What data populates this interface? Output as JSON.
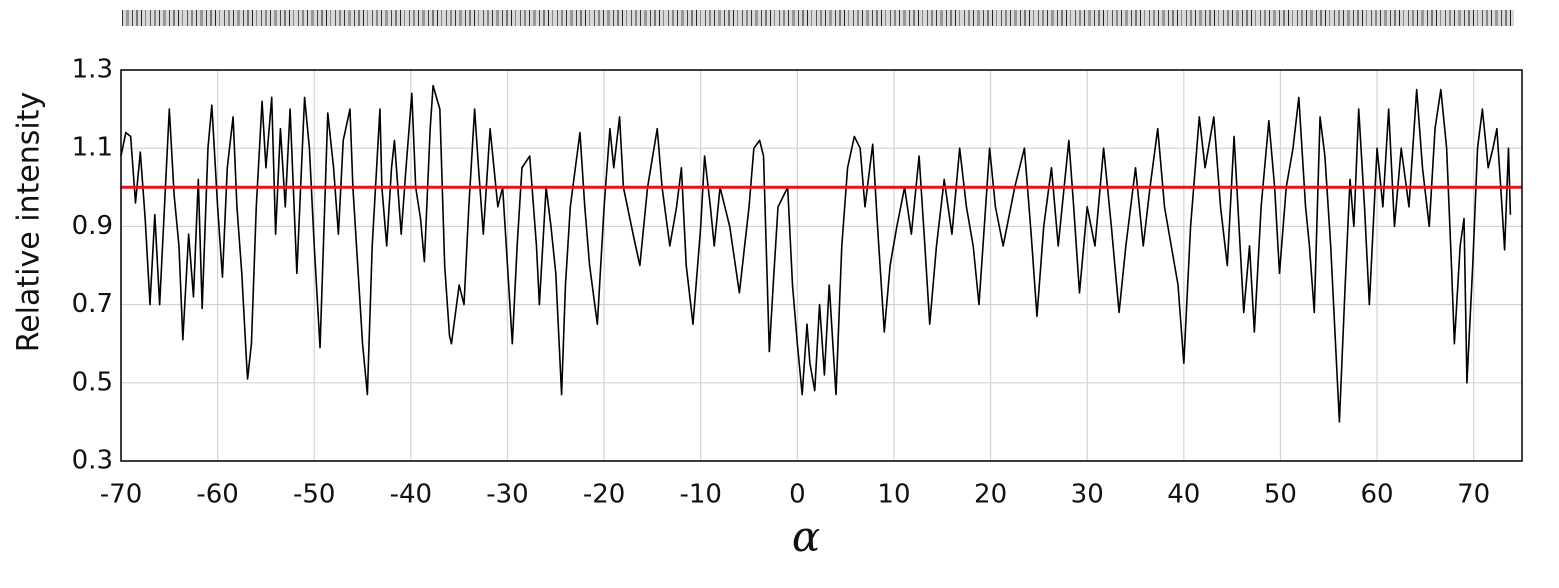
{
  "chart_data": {
    "type": "line",
    "ylabel": "Relative intensity",
    "xlabel": "α",
    "xlim": [
      -70,
      75
    ],
    "ylim": [
      0.3,
      1.3
    ],
    "xticks": [
      -70,
      -60,
      -50,
      -40,
      -30,
      -20,
      -10,
      0,
      10,
      20,
      30,
      40,
      50,
      60,
      70
    ],
    "yticks": [
      0.3,
      0.5,
      0.7,
      0.9,
      1.1,
      1.3
    ],
    "grid": true,
    "color": "#000000",
    "reference_line": {
      "value": 1.0,
      "color": "#e8141b"
    },
    "x": [
      -70,
      -69.5,
      -69,
      -68.5,
      -68,
      -67.5,
      -67,
      -66.5,
      -66,
      -65.5,
      -65,
      -64.5,
      -64,
      -63.6,
      -63,
      -62.5,
      -62,
      -61.6,
      -61,
      -60.6,
      -60,
      -59.5,
      -59,
      -58.4,
      -58,
      -57.5,
      -57,
      -56.9,
      -56.5,
      -56,
      -55.4,
      -55,
      -54.4,
      -54,
      -53.5,
      -53,
      -52.5,
      -51.8,
      -51,
      -50.5,
      -50,
      -49.4,
      -48.6,
      -48,
      -47.5,
      -47,
      -46.3,
      -46,
      -45.5,
      -45,
      -44.5,
      -44,
      -43.2,
      -43,
      -42.5,
      -42,
      -41.7,
      -41,
      -40.5,
      -39.9,
      -39.5,
      -39,
      -38.6,
      -38,
      -37.7,
      -37,
      -36.5,
      -36,
      -35.8,
      -35,
      -34.5,
      -34,
      -33.4,
      -33,
      -32.5,
      -31.8,
      -31,
      -30.5,
      -30,
      -29.5,
      -29,
      -28.5,
      -27.7,
      -27,
      -26.7,
      -26,
      -25.5,
      -25,
      -24.4,
      -24,
      -23.5,
      -22.5,
      -22,
      -21.5,
      -20.7,
      -20,
      -19.4,
      -19,
      -18.4,
      -18,
      -17,
      -16.3,
      -15.5,
      -14.5,
      -14,
      -13.2,
      -12.5,
      -12,
      -11.5,
      -10.8,
      -10,
      -9.6,
      -9,
      -8.6,
      -8,
      -7,
      -6,
      -5,
      -4.5,
      -3.9,
      -3.5,
      -2.9,
      -2.5,
      -2,
      -1,
      -0.5,
      0,
      0.5,
      1,
      1.3,
      1.8,
      2.3,
      2.8,
      3.3,
      4,
      4.6,
      5.2,
      5.9,
      6.5,
      7,
      7.8,
      8.3,
      9,
      9.6,
      10.3,
      11.1,
      11.8,
      12.6,
      13.2,
      13.7,
      14.4,
      15.2,
      16,
      16.8,
      17.5,
      18.2,
      18.8,
      19.9,
      20.5,
      21.3,
      22.5,
      23.5,
      24.2,
      24.8,
      25.5,
      26.3,
      27,
      28.1,
      28.6,
      29.2,
      30,
      30.8,
      31.7,
      32.5,
      33.3,
      34,
      35,
      35.8,
      36.5,
      37.3,
      38,
      38.7,
      39.4,
      40,
      40.7,
      41.6,
      42.2,
      43.1,
      43.8,
      44.5,
      45.2,
      46.2,
      46.8,
      47.3,
      48,
      48.8,
      49.4,
      49.9,
      50.6,
      51.3,
      51.9,
      52.6,
      53,
      53.5,
      54.1,
      54.6,
      55.2,
      55.7,
      56.1,
      56.7,
      57.2,
      57.6,
      58.1,
      58.7,
      59.2,
      60,
      60.6,
      61.2,
      61.8,
      62.5,
      63.3,
      64.1,
      64.7,
      65.4,
      66,
      66.6,
      67.2,
      67.7,
      68,
      68.6,
      69,
      69.3,
      69.9,
      70.4,
      70.9,
      71.5,
      72,
      72.4,
      72.8,
      73.2,
      73.6,
      73.8
    ],
    "values": [
      1.08,
      1.14,
      1.13,
      0.96,
      1.09,
      0.92,
      0.7,
      0.93,
      0.7,
      0.95,
      1.2,
      0.98,
      0.85,
      0.61,
      0.88,
      0.72,
      1.02,
      0.69,
      1.1,
      1.21,
      0.95,
      0.77,
      1.05,
      1.18,
      0.95,
      0.78,
      0.55,
      0.51,
      0.6,
      0.95,
      1.22,
      1.05,
      1.23,
      0.88,
      1.15,
      0.95,
      1.2,
      0.78,
      1.23,
      1.1,
      0.85,
      0.59,
      1.19,
      1.05,
      0.88,
      1.12,
      1.2,
      1.0,
      0.8,
      0.6,
      0.47,
      0.85,
      1.2,
      1.0,
      0.85,
      1.05,
      1.12,
      0.88,
      1.05,
      1.24,
      1.0,
      0.92,
      0.81,
      1.15,
      1.26,
      1.2,
      0.8,
      0.62,
      0.6,
      0.75,
      0.7,
      0.95,
      1.2,
      1.05,
      0.88,
      1.15,
      0.95,
      1.0,
      0.8,
      0.6,
      0.85,
      1.05,
      1.08,
      0.85,
      0.7,
      1.0,
      0.9,
      0.78,
      0.47,
      0.75,
      0.95,
      1.14,
      0.95,
      0.8,
      0.65,
      0.95,
      1.15,
      1.05,
      1.18,
      1.0,
      0.88,
      0.8,
      1.0,
      1.15,
      1.0,
      0.85,
      0.95,
      1.05,
      0.8,
      0.65,
      0.9,
      1.08,
      0.95,
      0.85,
      1.0,
      0.9,
      0.73,
      0.95,
      1.1,
      1.12,
      1.08,
      0.58,
      0.75,
      0.95,
      1.0,
      0.75,
      0.6,
      0.47,
      0.65,
      0.55,
      0.48,
      0.7,
      0.52,
      0.75,
      0.47,
      0.85,
      1.05,
      1.13,
      1.1,
      0.95,
      1.11,
      0.9,
      0.63,
      0.8,
      0.9,
      1.0,
      0.88,
      1.08,
      0.85,
      0.65,
      0.85,
      1.02,
      0.88,
      1.1,
      0.95,
      0.85,
      0.7,
      1.1,
      0.95,
      0.85,
      1.0,
      1.1,
      0.88,
      0.67,
      0.9,
      1.05,
      0.85,
      1.12,
      0.95,
      0.73,
      0.95,
      0.85,
      1.1,
      0.9,
      0.68,
      0.85,
      1.05,
      0.85,
      1.0,
      1.15,
      0.95,
      0.85,
      0.75,
      0.55,
      0.9,
      1.18,
      1.05,
      1.18,
      0.95,
      0.8,
      1.13,
      0.68,
      0.85,
      0.63,
      0.95,
      1.17,
      1.0,
      0.78,
      1.0,
      1.1,
      1.23,
      0.95,
      0.85,
      0.68,
      1.18,
      1.08,
      0.85,
      0.6,
      0.4,
      0.75,
      1.02,
      0.9,
      1.2,
      0.95,
      0.7,
      1.1,
      0.95,
      1.2,
      0.9,
      1.1,
      0.95,
      1.25,
      1.05,
      0.9,
      1.15,
      1.25,
      1.1,
      0.8,
      0.6,
      0.85,
      0.92,
      0.5,
      0.8,
      1.1,
      1.2,
      1.05,
      1.1,
      1.15,
      1.0,
      0.84,
      1.1,
      0.93
    ]
  }
}
